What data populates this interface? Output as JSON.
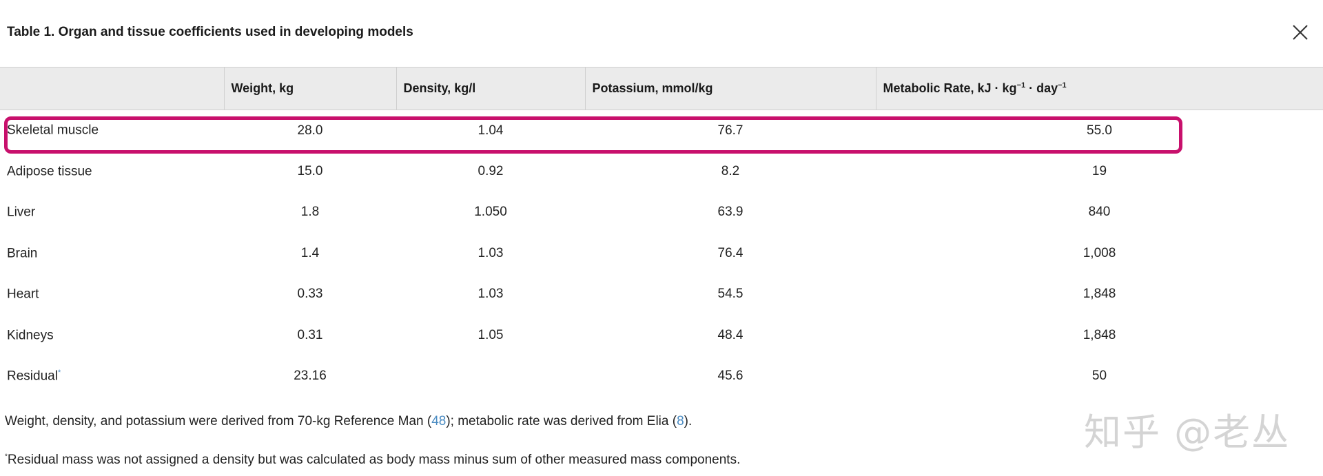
{
  "title": "Table 1. Organ and tissue coefficients used in developing models",
  "table": {
    "headers": [
      "",
      "Weight, kg",
      "Density, kg/l",
      "Potassium, mmol/kg",
      "Metabolic Rate, kJ · kg",
      "−1",
      " · day",
      "−1"
    ],
    "rows": [
      {
        "label": "Skeletal muscle",
        "weight": "28.0",
        "density": "1.04",
        "potassium": "76.7",
        "metabolic": "55.0",
        "mark": ""
      },
      {
        "label": "Adipose tissue",
        "weight": "15.0",
        "density": "0.92",
        "potassium": "8.2",
        "metabolic": "19",
        "mark": ""
      },
      {
        "label": "Liver",
        "weight": "1.8",
        "density": "1.050",
        "potassium": "63.9",
        "metabolic": "840",
        "mark": ""
      },
      {
        "label": "Brain",
        "weight": "1.4",
        "density": "1.03",
        "potassium": "76.4",
        "metabolic": "1,008",
        "mark": ""
      },
      {
        "label": "Heart",
        "weight": "0.33",
        "density": "1.03",
        "potassium": "54.5",
        "metabolic": "1,848",
        "mark": ""
      },
      {
        "label": "Kidneys",
        "weight": "0.31",
        "density": "1.05",
        "potassium": "48.4",
        "metabolic": "1,848",
        "mark": ""
      },
      {
        "label": "Residual",
        "weight": "23.16",
        "density": "",
        "potassium": "45.6",
        "metabolic": "50",
        "mark": "*"
      }
    ]
  },
  "notes": {
    "note1_a": "Weight, density, and potassium were derived from 70-kg Reference Man (",
    "ref1": "48",
    "note1_b": "); metabolic rate was derived from Elia (",
    "ref2": "8",
    "note1_c": ").",
    "note2_mark": "*",
    "note2": "Residual mass was not assigned a density but was calculated as body mass minus sum of other measured mass components."
  },
  "watermark": "知乎 @老丛",
  "colors": {
    "highlight": "#c8106c",
    "link": "#4a8bc2",
    "header_bg": "#ebebeb"
  },
  "icons": {
    "close": "close-icon"
  }
}
